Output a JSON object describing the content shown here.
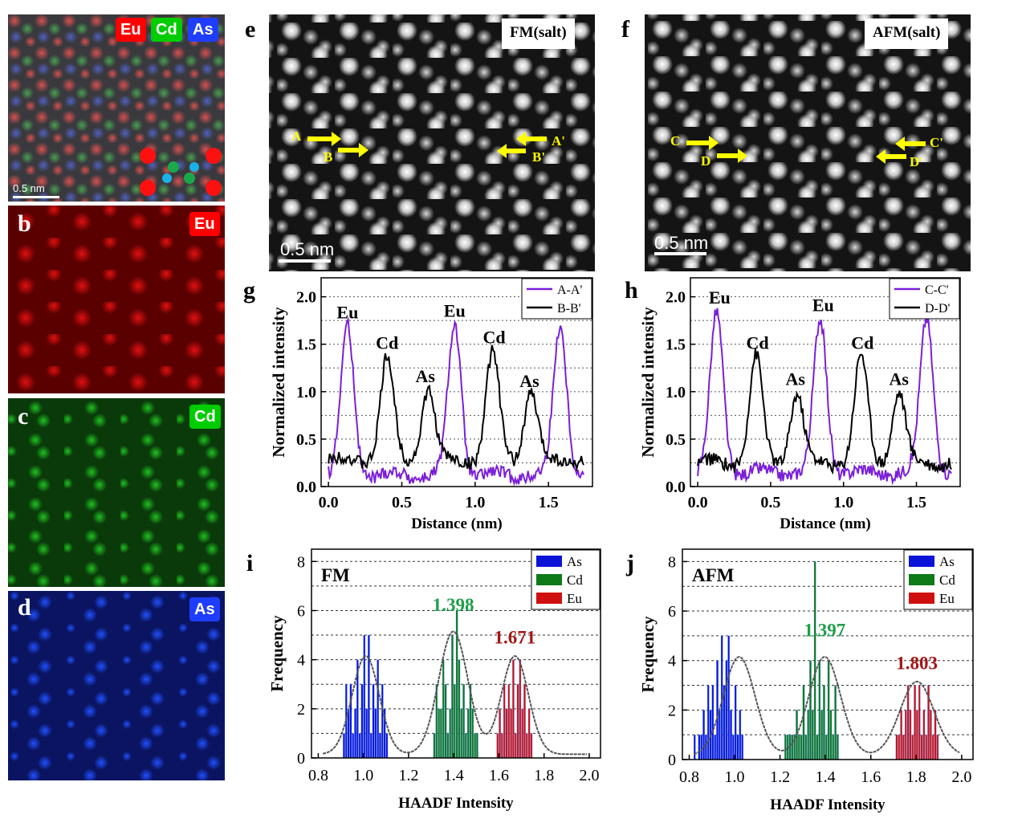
{
  "panels": {
    "a": {
      "tags": [
        "Eu",
        "Cd",
        "As"
      ],
      "scale": "0.5 nm"
    },
    "b": {
      "label": "b",
      "tag": "Eu"
    },
    "c": {
      "label": "c",
      "tag": "Cd"
    },
    "d": {
      "label": "d",
      "tag": "As"
    },
    "e": {
      "label": "e",
      "title": "FM(salt)",
      "scale": "0.5 nm",
      "markers": [
        "A",
        "B",
        "A'",
        "B'"
      ]
    },
    "f": {
      "label": "f",
      "title": "AFM(salt)",
      "scale": "0.5 nm",
      "markers": [
        "C",
        "D",
        "C'",
        "D'"
      ]
    },
    "g": {
      "label": "g"
    },
    "h": {
      "label": "h"
    },
    "i": {
      "label": "i"
    },
    "j": {
      "label": "j"
    }
  },
  "colors": {
    "eu": "#ff0000",
    "cd": "#00cc00",
    "as": "#1f3dff",
    "purple": "#7b1fd8",
    "green_text": "#1e9e4a",
    "red_text": "#a31515"
  },
  "chart_data": [
    {
      "id": "g",
      "type": "line",
      "xlabel": "Distance (nm)",
      "ylabel": "Normalized intensity",
      "xlim": [
        -0.05,
        1.8
      ],
      "ylim": [
        0,
        2.2
      ],
      "xticks": [
        "0.0",
        "0.5",
        "1.0",
        "1.5"
      ],
      "yticks": [
        "0.0",
        "0.5",
        "1.0",
        "1.5",
        "2.0"
      ],
      "legend": [
        "A-A'",
        "B-B'"
      ],
      "series": [
        {
          "name": "A-A'",
          "color": "#7b1fd8",
          "peaks": [
            [
              0.13,
              1.68
            ],
            [
              0.86,
              1.7
            ],
            [
              1.58,
              1.7
            ]
          ],
          "base": 0.12
        },
        {
          "name": "B-B'",
          "color": "#000000",
          "peaks": [
            [
              0.4,
              1.35
            ],
            [
              0.68,
              1.02
            ],
            [
              1.12,
              1.4
            ],
            [
              1.38,
              1.0
            ]
          ],
          "base": 0.28
        }
      ],
      "annotations": [
        {
          "text": "Eu",
          "x": 0.13,
          "y": 1.72
        },
        {
          "text": "Cd",
          "x": 0.4,
          "y": 1.4
        },
        {
          "text": "As",
          "x": 0.66,
          "y": 1.05
        },
        {
          "text": "Eu",
          "x": 0.86,
          "y": 1.74
        },
        {
          "text": "Cd",
          "x": 1.13,
          "y": 1.46
        },
        {
          "text": "As",
          "x": 1.37,
          "y": 1.0
        }
      ]
    },
    {
      "id": "h",
      "type": "line",
      "xlabel": "Distance (nm)",
      "ylabel": "Normalized intensity",
      "xlim": [
        -0.05,
        1.8
      ],
      "ylim": [
        0,
        2.2
      ],
      "xticks": [
        "0.0",
        "0.5",
        "1.0",
        "1.5"
      ],
      "yticks": [
        "0.0",
        "0.5",
        "1.0",
        "1.5",
        "2.0"
      ],
      "legend": [
        "C-C'",
        "D-D'"
      ],
      "series": [
        {
          "name": "C-C'",
          "color": "#7b1fd8",
          "peaks": [
            [
              0.13,
              1.82
            ],
            [
              0.84,
              1.75
            ],
            [
              1.57,
              1.78
            ]
          ],
          "base": 0.15
        },
        {
          "name": "D-D'",
          "color": "#000000",
          "peaks": [
            [
              0.4,
              1.37
            ],
            [
              0.68,
              0.98
            ],
            [
              1.12,
              1.38
            ],
            [
              1.38,
              1.0
            ]
          ],
          "base": 0.25
        }
      ],
      "annotations": [
        {
          "text": "Eu",
          "x": 0.15,
          "y": 1.88
        },
        {
          "text": "Cd",
          "x": 0.41,
          "y": 1.4
        },
        {
          "text": "As",
          "x": 0.67,
          "y": 1.02
        },
        {
          "text": "Eu",
          "x": 0.86,
          "y": 1.8
        },
        {
          "text": "Cd",
          "x": 1.13,
          "y": 1.4
        },
        {
          "text": "As",
          "x": 1.38,
          "y": 1.02
        }
      ]
    },
    {
      "id": "i",
      "type": "bar",
      "title": "FM",
      "xlabel": "HAADF Intensity",
      "ylabel": "Frequency",
      "xlim": [
        0.77,
        2.05
      ],
      "ylim": [
        0,
        8.5
      ],
      "xticks": [
        "0.8",
        "1.0",
        "1.2",
        "1.4",
        "1.6",
        "1.8",
        "2.0"
      ],
      "yticks": [
        "0",
        "2",
        "4",
        "6",
        "8"
      ],
      "legend": [
        "As",
        "Cd",
        "Eu"
      ],
      "fits": [
        {
          "text": "1.398",
          "mu": 1.398,
          "amp": 5,
          "sigma": 0.065,
          "color": "green_text"
        },
        {
          "text": "1.671",
          "mu": 1.671,
          "amp": 4,
          "sigma": 0.06,
          "color": "red_text"
        },
        {
          "mu": 1.01,
          "amp": 4,
          "sigma": 0.06
        }
      ],
      "series": [
        {
          "name": "As",
          "start": 0.91,
          "values": [
            1,
            3,
            2,
            3,
            1,
            2,
            4,
            1,
            3,
            5,
            2,
            5,
            1,
            3,
            2,
            4,
            1,
            3,
            2,
            1
          ]
        },
        {
          "name": "Cd",
          "start": 1.31,
          "values": [
            1,
            3,
            2,
            2,
            4,
            3,
            1,
            2,
            5,
            3,
            6,
            4,
            2,
            3,
            1,
            2,
            3,
            2,
            1,
            1
          ]
        },
        {
          "name": "Eu",
          "start": 1.59,
          "values": [
            1,
            2,
            1,
            3,
            2,
            3,
            2,
            4,
            1,
            3,
            4,
            2,
            3,
            1,
            2,
            1
          ]
        }
      ]
    },
    {
      "id": "j",
      "type": "bar",
      "title": "AFM",
      "xlabel": "HAADF Intensity",
      "ylabel": "Frequency",
      "xlim": [
        0.77,
        2.05
      ],
      "ylim": [
        0,
        8.5
      ],
      "xticks": [
        "0.8",
        "1.0",
        "1.2",
        "1.4",
        "1.6",
        "1.8",
        "2.0"
      ],
      "yticks": [
        "0",
        "2",
        "4",
        "6",
        "8"
      ],
      "legend": [
        "As",
        "Cd",
        "Eu"
      ],
      "fits": [
        {
          "text": "1.397",
          "mu": 1.397,
          "amp": 4,
          "sigma": 0.07,
          "color": "green_text"
        },
        {
          "text": "1.803",
          "mu": 1.803,
          "amp": 3,
          "sigma": 0.075,
          "color": "red_text"
        },
        {
          "mu": 1.02,
          "amp": 4,
          "sigma": 0.07
        }
      ],
      "series": [
        {
          "name": "As",
          "start": 0.82,
          "values": [
            1,
            0,
            1,
            1,
            2,
            1,
            3,
            2,
            3,
            1,
            4,
            2,
            5,
            3,
            4,
            5,
            2,
            1,
            3,
            1,
            2,
            1
          ]
        },
        {
          "name": "Cd",
          "start": 1.22,
          "values": [
            1,
            1,
            1,
            1,
            1,
            2,
            1,
            1,
            3,
            1,
            2,
            4,
            2,
            8,
            1,
            4,
            2,
            3,
            1,
            4,
            2,
            1,
            3,
            1
          ]
        },
        {
          "name": "Eu",
          "start": 1.71,
          "values": [
            1,
            1,
            2,
            1,
            2,
            3,
            2,
            1,
            3,
            2,
            3,
            1,
            2,
            1,
            3,
            2,
            1,
            2,
            1
          ]
        }
      ]
    }
  ]
}
